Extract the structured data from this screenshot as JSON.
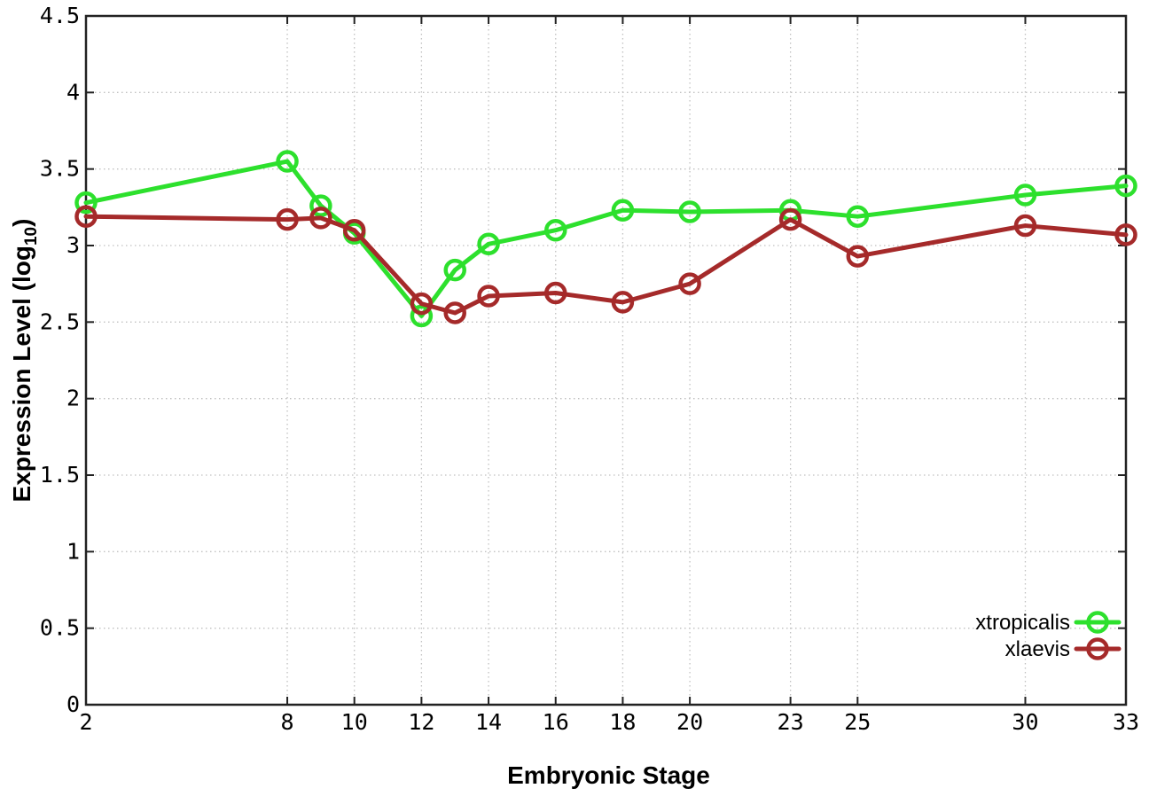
{
  "chart_data": {
    "type": "line",
    "title": "",
    "xlabel": "Embryonic Stage",
    "ylabel": {
      "prefix": "Expression Level (log",
      "sub": "10",
      "suffix": ")"
    },
    "x": [
      2,
      8,
      9,
      10,
      12,
      13,
      14,
      16,
      18,
      20,
      23,
      25,
      30,
      33
    ],
    "xticks": [
      2,
      8,
      10,
      12,
      14,
      16,
      18,
      20,
      23,
      25,
      30,
      33
    ],
    "yticks": [
      0,
      0.5,
      1,
      1.5,
      2,
      2.5,
      3,
      3.5,
      4,
      4.5
    ],
    "xlim": [
      2,
      33
    ],
    "ylim": [
      0,
      4.5
    ],
    "grid": true,
    "legend_position": "bottom-right",
    "series": [
      {
        "name": "xtropicalis",
        "color": "#2de02d",
        "marker": "open-circle",
        "values": [
          3.28,
          3.55,
          3.26,
          3.08,
          2.54,
          2.84,
          3.01,
          3.1,
          3.23,
          3.22,
          3.23,
          3.19,
          3.33,
          3.39
        ]
      },
      {
        "name": "xlaevis",
        "color": "#a52a2a",
        "marker": "open-circle",
        "values": [
          3.19,
          3.17,
          3.18,
          3.1,
          2.62,
          2.56,
          2.67,
          2.69,
          2.63,
          2.75,
          3.17,
          2.93,
          3.13,
          3.07
        ]
      }
    ]
  },
  "colors": {
    "background": "#ffffff",
    "grid": "#c0c0c0",
    "axis": "#222222",
    "text": "#000000"
  }
}
